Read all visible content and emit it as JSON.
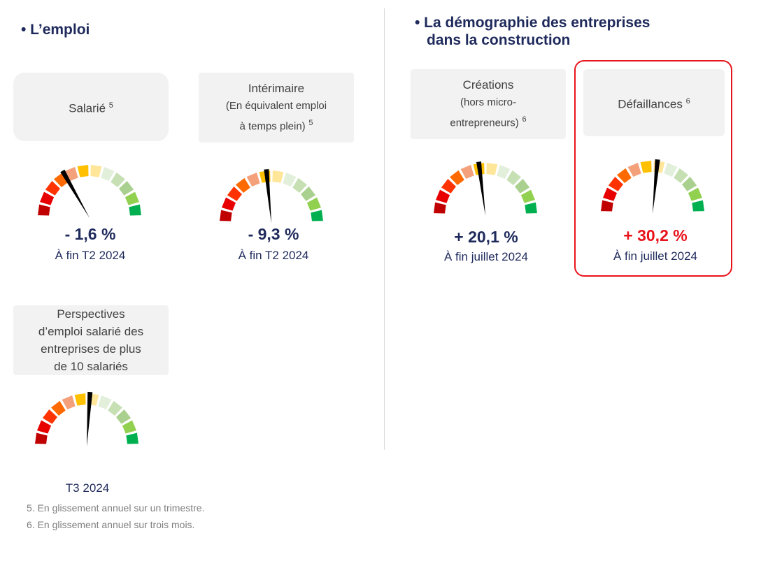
{
  "sections": {
    "emploi": "• L’emploi",
    "demo_line1": "• La démographie des entreprises",
    "demo_line2": "dans la construction"
  },
  "indicators": [
    {
      "title": "Salarié",
      "note_ref": "5",
      "value": "- 1,6 %",
      "period": "À fin T2 2024",
      "needle": 0.33
    },
    {
      "title": "Intérimaire",
      "title2": "(En équivalent emploi",
      "title3": "à temps plein)",
      "note_ref": "5",
      "value": "- 9,3 %",
      "period": "À fin T2 2024",
      "needle": 0.47
    },
    {
      "title": "Créations",
      "title2": "(hors micro-",
      "title3": "entrepreneurs)",
      "note_ref": "6",
      "value": "+ 20,1 %",
      "period": "À fin juillet 2024",
      "needle": 0.46
    },
    {
      "title": "Défaillances",
      "note_ref": "6",
      "value": "+ 30,2 %",
      "period": "À fin juillet 2024",
      "needle": 0.53,
      "highlight": true
    },
    {
      "title": "Perspectives",
      "title2": "d’emploi salarié des",
      "title3": "entreprises de plus",
      "title4": "de 10 salariés",
      "period": "T3 2024",
      "needle": 0.52
    }
  ],
  "footnotes": [
    "5. En glissement annuel sur un trimestre.",
    "6. En glissement annuel sur trois mois."
  ],
  "colors": {
    "navy": "#1F2A5C",
    "red": "#E8141B",
    "segments": [
      "#C00000",
      "#E80000",
      "#FF3300",
      "#FF6A00",
      "#F4A07A",
      "#FFC000",
      "#FFE699",
      "#E2EFDA",
      "#C6E0B4",
      "#A9D08E",
      "#92D050",
      "#00B050"
    ]
  }
}
